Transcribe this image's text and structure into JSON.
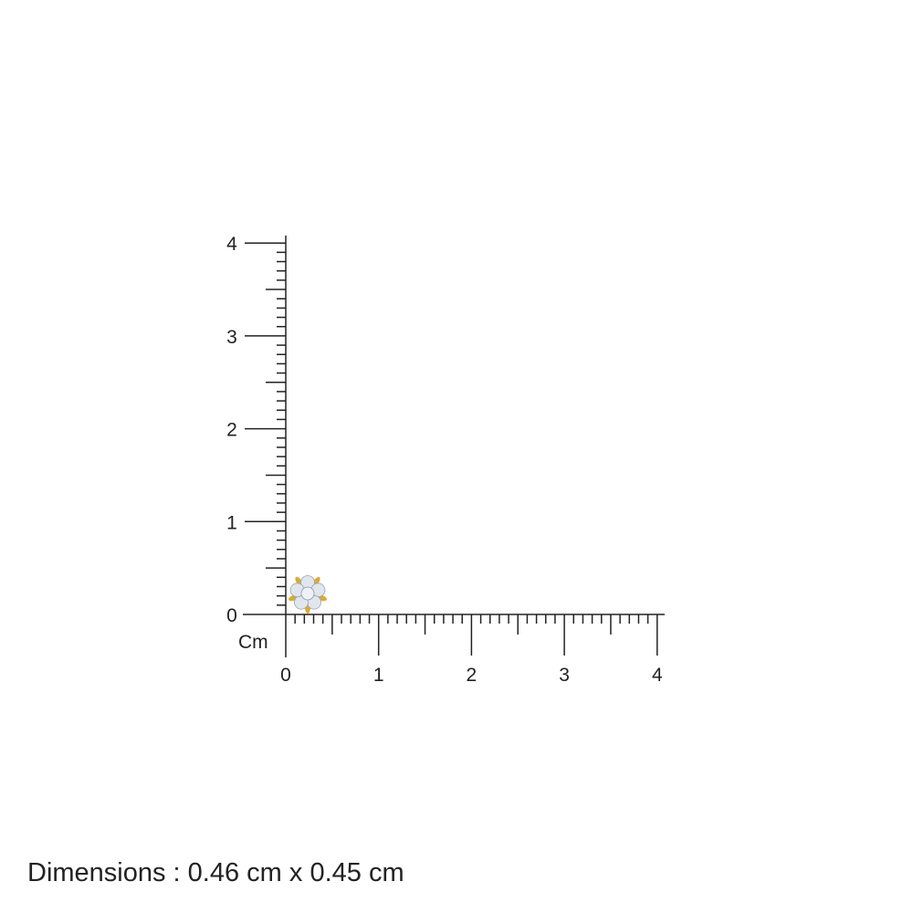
{
  "ruler": {
    "unit_label": "Cm",
    "x_ticks": [
      "0",
      "1",
      "2",
      "3",
      "4"
    ],
    "y_ticks": [
      "0",
      "1",
      "2",
      "3",
      "4"
    ],
    "minor_divisions_per_unit": 10,
    "line_color": "#222222"
  },
  "product": {
    "type": "flower stud with stones",
    "metal_color": "#e0a928",
    "stone_color": "#dfe6ee"
  },
  "dimensions_text": "Dimensions : 0.46 cm x 0.45 cm"
}
